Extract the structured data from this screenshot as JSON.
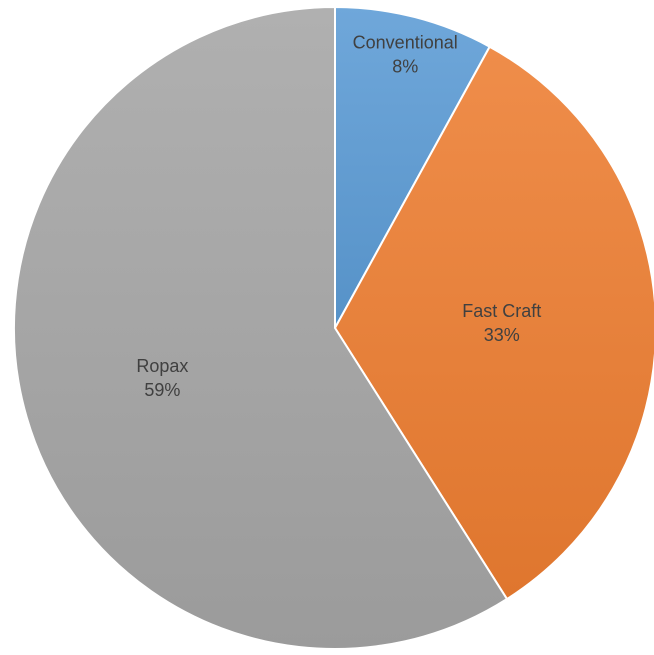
{
  "chart_data": {
    "type": "pie",
    "title": "",
    "slices": [
      {
        "label": "Conventional",
        "value": 8,
        "display": "8%",
        "color": "#5B9BD5"
      },
      {
        "label": "Fast Craft",
        "value": 33,
        "display": "33%",
        "color": "#ED7D31"
      },
      {
        "label": "Ropax",
        "value": 59,
        "display": "59%",
        "color": "#A5A5A5"
      }
    ],
    "start_angle": "12 o'clock",
    "direction": "clockwise",
    "legend": "none",
    "labels": "inside-slices"
  }
}
